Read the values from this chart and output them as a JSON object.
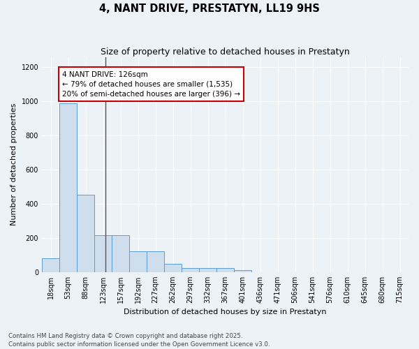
{
  "title": "4, NANT DRIVE, PRESTATYN, LL19 9HS",
  "subtitle": "Size of property relative to detached houses in Prestatyn",
  "xlabel": "Distribution of detached houses by size in Prestatyn",
  "ylabel": "Number of detached properties",
  "bar_categories": [
    "18sqm",
    "53sqm",
    "88sqm",
    "123sqm",
    "157sqm",
    "192sqm",
    "227sqm",
    "262sqm",
    "297sqm",
    "332sqm",
    "367sqm",
    "401sqm",
    "436sqm",
    "471sqm",
    "506sqm",
    "541sqm",
    "576sqm",
    "610sqm",
    "645sqm",
    "680sqm",
    "715sqm"
  ],
  "bar_values": [
    80,
    990,
    455,
    215,
    215,
    120,
    120,
    50,
    25,
    22,
    22,
    10,
    0,
    0,
    0,
    0,
    0,
    0,
    0,
    0,
    0
  ],
  "bar_color": "#cfdeed",
  "bar_edge_color": "#5b9bd5",
  "ylim": [
    0,
    1260
  ],
  "yticks": [
    0,
    200,
    400,
    600,
    800,
    1000,
    1200
  ],
  "vline_x_index": 3.15,
  "vline_color": "#555555",
  "annotation_text": "4 NANT DRIVE: 126sqm\n← 79% of detached houses are smaller (1,535)\n20% of semi-detached houses are larger (396) →",
  "annotation_box_facecolor": "#ffffff",
  "annotation_box_edgecolor": "#cc0000",
  "footer_text": "Contains HM Land Registry data © Crown copyright and database right 2025.\nContains public sector information licensed under the Open Government Licence v3.0.",
  "bg_color": "#edf2f7",
  "grid_color": "#ffffff",
  "title_fontsize": 10.5,
  "subtitle_fontsize": 9,
  "axis_label_fontsize": 8,
  "tick_fontsize": 7,
  "annotation_fontsize": 7.5,
  "footer_fontsize": 6.2
}
